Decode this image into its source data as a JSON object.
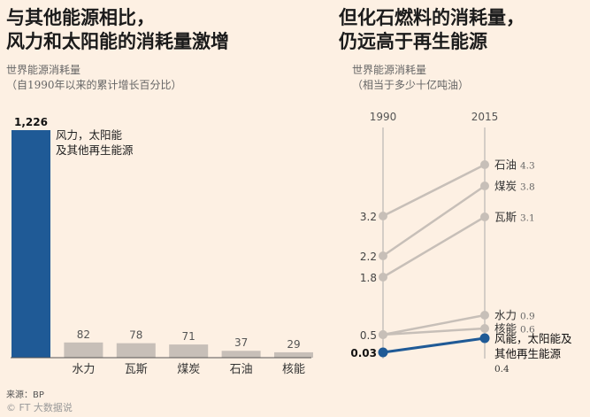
{
  "left_chart": {
    "title_line1": "与其他能源相比，",
    "title_line2": "风力和太阳能的消耗量激增",
    "subtitle_line1": "世界能源消耗量",
    "subtitle_line2": "（自1990年以来的累计增长百分比）"
  },
  "right_chart": {
    "title_line1": "但化石燃料的消耗量，",
    "title_line2": "仍远高于再生能源",
    "subtitle_line1": "世界能源消耗量",
    "subtitle_line2": "（相当于多少十亿吨油）"
  },
  "source": "来源：BP",
  "watermark": "© FT 大数据说",
  "colors": {
    "highlight": "#1f5a96",
    "muted": "#c7bfb8",
    "background": "#fdf0e3"
  },
  "chart_data": [
    {
      "type": "bar",
      "categories": [
        "风力，太阳能及其他再生能源",
        "水力",
        "瓦斯",
        "煤炭",
        "石油",
        "核能"
      ],
      "category_labels": [
        "风力，太阳能\n及其他再生能源",
        "水力",
        "瓦斯",
        "煤炭",
        "石油",
        "核能"
      ],
      "values": [
        1226,
        82,
        78,
        71,
        37,
        29
      ],
      "value_labels": [
        "1,226",
        "82",
        "78",
        "71",
        "37",
        "29"
      ],
      "title": "与其他能源相比，风力和太阳能的消耗量激增",
      "ylabel": "",
      "ylim": [
        0,
        1300
      ]
    },
    {
      "type": "line",
      "x": [
        "1990",
        "2015"
      ],
      "series": [
        {
          "name": "石油",
          "values": [
            3.2,
            4.3
          ],
          "labels": [
            "3.2",
            "4.3"
          ]
        },
        {
          "name": "煤炭",
          "values": [
            2.2,
            3.8
          ],
          "labels": [
            "2.2",
            "3.8"
          ]
        },
        {
          "name": "瓦斯",
          "values": [
            1.8,
            3.1
          ],
          "labels": [
            "1.8",
            "3.1"
          ]
        },
        {
          "name": "水力",
          "values": [
            0.5,
            0.9
          ],
          "labels": [
            "0.5",
            "0.9"
          ]
        },
        {
          "name": "核能",
          "values": [
            0.5,
            0.6
          ],
          "labels": [
            "",
            "0.6"
          ]
        },
        {
          "name": "风能，太阳能及其他再生能源",
          "values": [
            0.03,
            0.4
          ],
          "labels": [
            "0.03",
            "0.4"
          ],
          "highlight": true
        }
      ],
      "title": "但化石燃料的消耗量，仍远高于再生能源",
      "ylim": [
        0,
        4.5
      ]
    }
  ]
}
